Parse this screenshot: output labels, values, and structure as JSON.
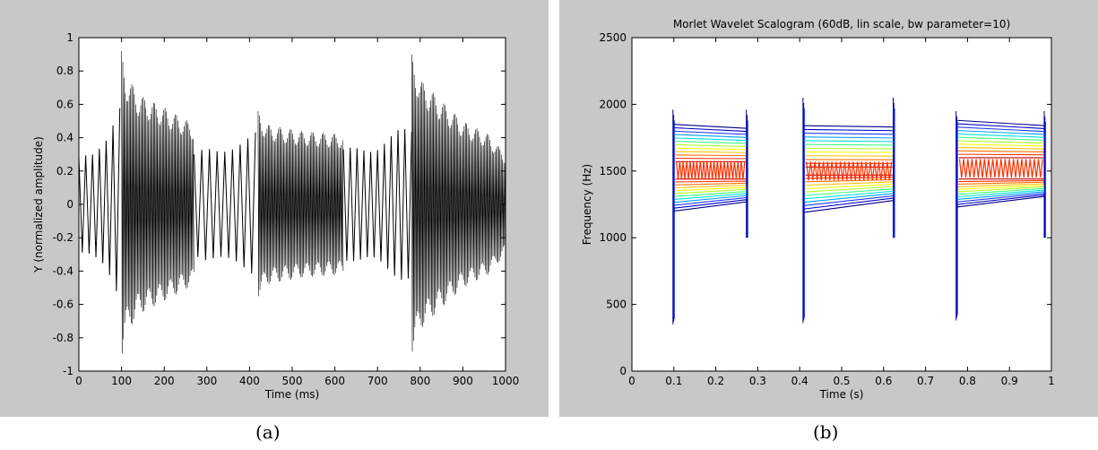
{
  "panels": {
    "a": {
      "caption": "(a)"
    },
    "b": {
      "caption": "(b)"
    }
  },
  "chart_data": [
    {
      "type": "line",
      "title": "",
      "xlabel": "Time (ms)",
      "ylabel": "Y (normalized amplitude)",
      "xlim": [
        0,
        1000
      ],
      "ylim": [
        -1,
        1
      ],
      "xticks": [
        "0",
        "100",
        "200",
        "300",
        "400",
        "500",
        "600",
        "700",
        "800",
        "900",
        "1000"
      ],
      "yticks": [
        "-1",
        "-0.8",
        "-0.6",
        "-0.4",
        "-0.2",
        "0",
        "0.2",
        "0.4",
        "0.6",
        "0.8",
        "1"
      ],
      "grid": false,
      "series": [
        {
          "color": "#000000",
          "segments": [
            {
              "t0": 0,
              "t1": 100,
              "period": 16,
              "envelope": [
                [
                  0,
                  0.28
                ],
                [
                  30,
                  0.32
                ],
                [
                  60,
                  0.45
                ],
                [
                  80,
                  0.58
                ],
                [
                  100,
                  0.68
                ]
              ]
            },
            {
              "t0": 100,
              "t1": 270,
              "period": 3,
              "envelope": [
                [
                  100,
                  0.92
                ],
                [
                  110,
                  0.78
                ],
                [
                  140,
                  0.66
                ],
                [
                  200,
                  0.58
                ],
                [
                  270,
                  0.48
                ]
              ]
            },
            {
              "t0": 270,
              "t1": 420,
              "period": 18,
              "envelope": [
                [
                  270,
                  0.3
                ],
                [
                  300,
                  0.36
                ],
                [
                  350,
                  0.4
                ],
                [
                  400,
                  0.42
                ],
                [
                  420,
                  0.44
                ]
              ]
            },
            {
              "t0": 420,
              "t1": 620,
              "period": 3,
              "envelope": [
                [
                  420,
                  0.56
                ],
                [
                  440,
                  0.48
                ],
                [
                  520,
                  0.44
                ],
                [
                  620,
                  0.42
                ]
              ]
            },
            {
              "t0": 620,
              "t1": 780,
              "period": 16,
              "envelope": [
                [
                  620,
                  0.33
                ],
                [
                  660,
                  0.38
                ],
                [
                  700,
                  0.4
                ],
                [
                  750,
                  0.45
                ],
                [
                  780,
                  0.46
                ]
              ]
            },
            {
              "t0": 780,
              "t1": 1000,
              "period": 3,
              "envelope": [
                [
                  780,
                  0.9
                ],
                [
                  800,
                  0.75
                ],
                [
                  850,
                  0.62
                ],
                [
                  900,
                  0.5
                ],
                [
                  960,
                  0.42
                ],
                [
                  1000,
                  0.3
                ]
              ]
            }
          ]
        }
      ]
    },
    {
      "type": "contour",
      "title": "Morlet Wavelet Scalogram (60dB, lin scale, bw parameter=10)",
      "xlabel": "Time (s)",
      "ylabel": "Frequency (Hz)",
      "xlim": [
        0,
        1
      ],
      "ylim": [
        0,
        2500
      ],
      "xticks": [
        "0",
        "0.1",
        "0.2",
        "0.3",
        "0.4",
        "0.5",
        "0.6",
        "0.7",
        "0.8",
        "0.9",
        "1"
      ],
      "yticks": [
        "0",
        "500",
        "1000",
        "1500",
        "2000",
        "2500"
      ],
      "grid": false,
      "colormap": [
        "#00008b",
        "#0000cd",
        "#1e3cff",
        "#00a0ff",
        "#00e0e0",
        "#40ff80",
        "#b0ff20",
        "#ffff00",
        "#ffc000",
        "#ff7000",
        "#ff3000",
        "#c00000"
      ],
      "bursts": [
        {
          "t0": 0.1,
          "t1": 0.275,
          "lower_hz": [
            1200,
            1270
          ],
          "upper_hz": [
            1850,
            1820
          ],
          "core_hz": [
            1440,
            1570
          ],
          "edge_top_hz": 1960,
          "edge_bottom_hz": 350
        },
        {
          "t0": 0.41,
          "t1": 0.625,
          "lower_hz": [
            1190,
            1280
          ],
          "upper_hz": [
            1840,
            1830
          ],
          "core_hz": [
            1470,
            1530
          ],
          "edge_top_hz": 2050,
          "edge_bottom_hz": 360
        },
        {
          "t0": 0.775,
          "t1": 0.985,
          "lower_hz": [
            1230,
            1310
          ],
          "upper_hz": [
            1880,
            1840
          ],
          "core_hz": [
            1440,
            1600
          ],
          "edge_top_hz": 1950,
          "edge_bottom_hz": 380
        }
      ]
    }
  ]
}
